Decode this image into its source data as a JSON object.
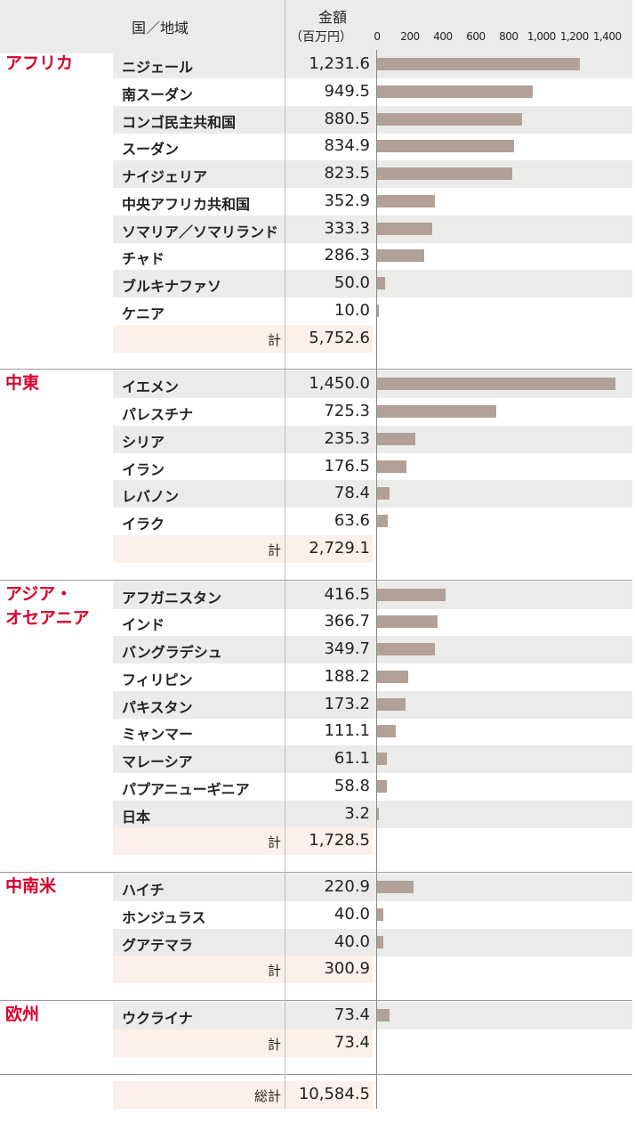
{
  "header": {
    "country_label": "国／地域",
    "amount_label": "金額",
    "unit_label": "（百万円）"
  },
  "chart_data": {
    "type": "bar",
    "orientation": "horizontal",
    "xlim": [
      0,
      1450
    ],
    "ticks": [
      {
        "value": 0,
        "label": "0"
      },
      {
        "value": 200,
        "label": "200"
      },
      {
        "value": 400,
        "label": "400"
      },
      {
        "value": 600,
        "label": "600"
      },
      {
        "value": 800,
        "label": "800"
      },
      {
        "value": 1000,
        "label": "1,000"
      },
      {
        "value": 1200,
        "label": "1,200"
      },
      {
        "value": 1400,
        "label": "1,400"
      }
    ],
    "bar_color": "#b1a197",
    "regions": [
      {
        "name": "アフリカ",
        "total_label": "計",
        "total": "5,752.6",
        "items": [
          {
            "name": "ニジェール",
            "display": "1,231.6",
            "value": 1231.6
          },
          {
            "name": "南スーダン",
            "display": "949.5",
            "value": 949.5
          },
          {
            "name": "コンゴ民主共和国",
            "display": "880.5",
            "value": 880.5
          },
          {
            "name": "スーダン",
            "display": "834.9",
            "value": 834.9
          },
          {
            "name": "ナイジェリア",
            "display": "823.5",
            "value": 823.5
          },
          {
            "name": "中央アフリカ共和国",
            "display": "352.9",
            "value": 352.9
          },
          {
            "name": "ソマリア／ソマリランド",
            "display": "333.3",
            "value": 333.3
          },
          {
            "name": "チャド",
            "display": "286.3",
            "value": 286.3
          },
          {
            "name": "ブルキナファソ",
            "display": "50.0",
            "value": 50.0
          },
          {
            "name": "ケニア",
            "display": "10.0",
            "value": 10.0
          }
        ]
      },
      {
        "name": "中東",
        "total_label": "計",
        "total": "2,729.1",
        "items": [
          {
            "name": "イエメン",
            "display": "1,450.0",
            "value": 1450.0
          },
          {
            "name": "パレスチナ",
            "display": "725.3",
            "value": 725.3
          },
          {
            "name": "シリア",
            "display": "235.3",
            "value": 235.3
          },
          {
            "name": "イラン",
            "display": "176.5",
            "value": 176.5
          },
          {
            "name": "レバノン",
            "display": "78.4",
            "value": 78.4
          },
          {
            "name": "イラク",
            "display": "63.6",
            "value": 63.6
          }
        ]
      },
      {
        "name": "アジア・\nオセアニア",
        "total_label": "計",
        "total": "1,728.5",
        "items": [
          {
            "name": "アフガニスタン",
            "display": "416.5",
            "value": 416.5
          },
          {
            "name": "インド",
            "display": "366.7",
            "value": 366.7
          },
          {
            "name": "バングラデシュ",
            "display": "349.7",
            "value": 349.7
          },
          {
            "name": "フィリピン",
            "display": "188.2",
            "value": 188.2
          },
          {
            "name": "パキスタン",
            "display": "173.2",
            "value": 173.2
          },
          {
            "name": "ミャンマー",
            "display": "111.1",
            "value": 111.1
          },
          {
            "name": "マレーシア",
            "display": "61.1",
            "value": 61.1
          },
          {
            "name": "パプアニューギニア",
            "display": "58.8",
            "value": 58.8
          },
          {
            "name": "日本",
            "display": "3.2",
            "value": 3.2
          }
        ]
      },
      {
        "name": "中南米",
        "total_label": "計",
        "total": "300.9",
        "items": [
          {
            "name": "ハイチ",
            "display": "220.9",
            "value": 220.9
          },
          {
            "name": "ホンジュラス",
            "display": "40.0",
            "value": 40.0
          },
          {
            "name": "グアテマラ",
            "display": "40.0",
            "value": 40.0
          }
        ]
      },
      {
        "name": "欧州",
        "total_label": "計",
        "total": "73.4",
        "items": [
          {
            "name": "ウクライナ",
            "display": "73.4",
            "value": 73.4
          }
        ]
      }
    ],
    "grand_total_label": "総計",
    "grand_total": "10,584.5"
  },
  "colors": {
    "region": "#d7002a",
    "row_shade": "#ebebea",
    "total_bg": "#fdf0e8"
  }
}
